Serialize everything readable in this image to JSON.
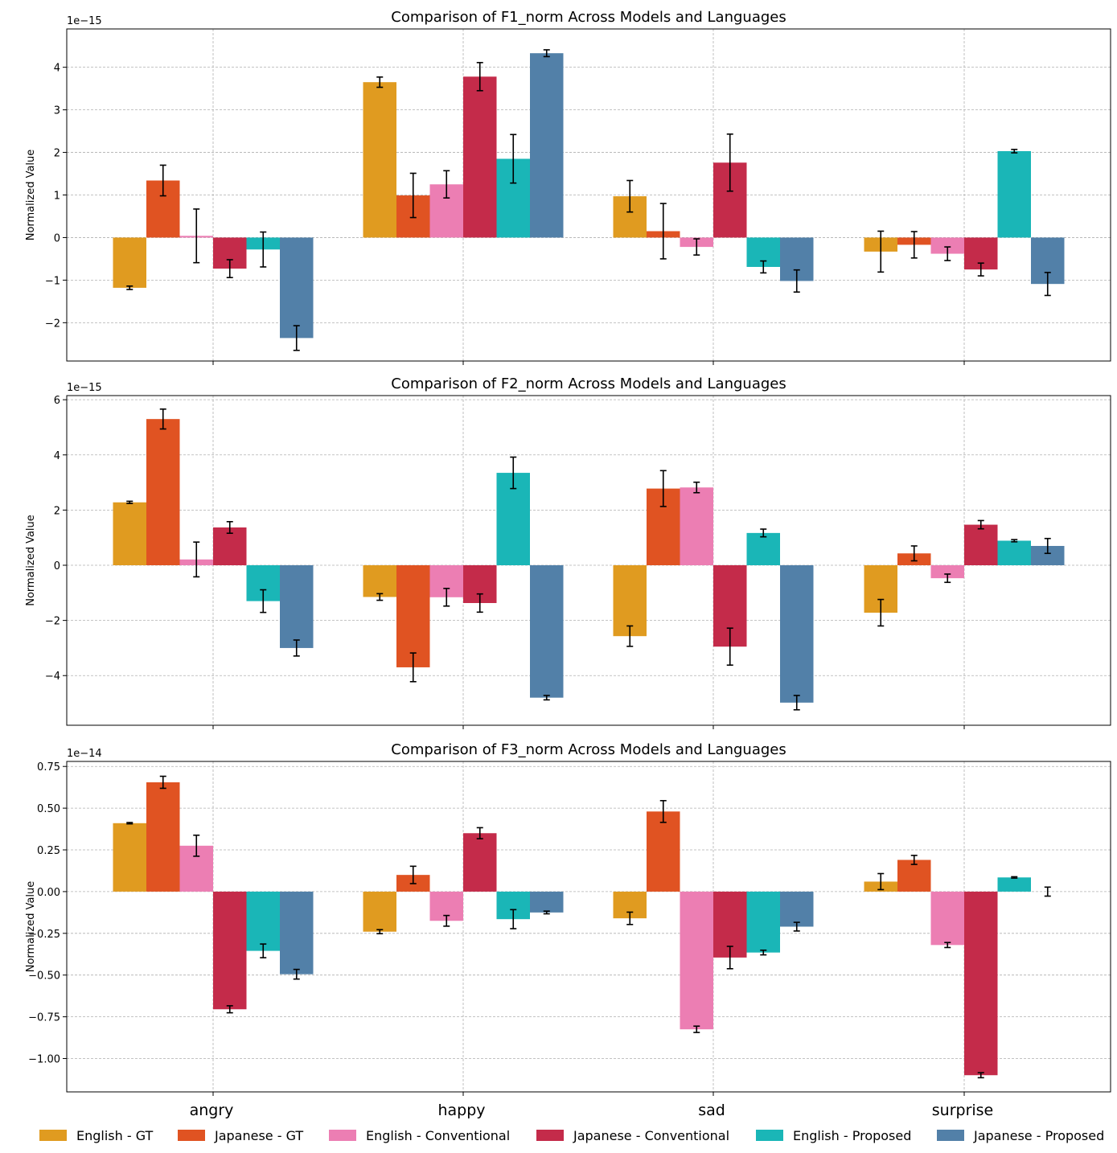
{
  "chart_data": [
    {
      "type": "bar",
      "title": "Comparison of F1_norm Across Models and Languages",
      "ylabel": "Normalized Value",
      "exponent_label": "1e−15",
      "categories": [
        "angry",
        "happy",
        "sad",
        "surprise"
      ],
      "ylim": [
        -2.9,
        4.9
      ],
      "yticks": [
        -2,
        -1,
        0,
        1,
        2,
        3,
        4
      ],
      "ytick_labels": [
        "−2",
        "−1",
        "0",
        "1",
        "2",
        "3",
        "4"
      ],
      "grid": true,
      "series": [
        {
          "name": "English - GT",
          "values": [
            -1.18,
            3.65,
            0.97,
            -0.33
          ],
          "errors": [
            0.04,
            0.12,
            0.37,
            0.48
          ]
        },
        {
          "name": "Japanese - GT",
          "values": [
            1.34,
            0.99,
            0.15,
            -0.17
          ],
          "errors": [
            0.36,
            0.52,
            0.65,
            0.31
          ]
        },
        {
          "name": "English - Conventional",
          "values": [
            0.04,
            1.25,
            -0.22,
            -0.38
          ],
          "errors": [
            0.63,
            0.32,
            0.19,
            0.16
          ]
        },
        {
          "name": "Japanese - Conventional",
          "values": [
            -0.73,
            3.78,
            1.76,
            -0.75
          ],
          "errors": [
            0.21,
            0.33,
            0.67,
            0.15
          ]
        },
        {
          "name": "English - Proposed",
          "values": [
            -0.28,
            1.85,
            -0.69,
            2.03
          ],
          "errors": [
            0.41,
            0.57,
            0.14,
            0.04
          ]
        },
        {
          "name": "Japanese - Proposed",
          "values": [
            -2.36,
            4.33,
            -1.02,
            -1.09
          ],
          "errors": [
            0.29,
            0.08,
            0.26,
            0.27
          ]
        }
      ]
    },
    {
      "type": "bar",
      "title": "Comparison of F2_norm Across Models and Languages",
      "ylabel": "Normalized Value",
      "exponent_label": "1e−15",
      "categories": [
        "angry",
        "happy",
        "sad",
        "surprise"
      ],
      "ylim": [
        -5.8,
        6.15
      ],
      "yticks": [
        -4,
        -2,
        0,
        2,
        4,
        6
      ],
      "ytick_labels": [
        "−4",
        "−2",
        "0",
        "2",
        "4",
        "6"
      ],
      "grid": true,
      "series": [
        {
          "name": "English - GT",
          "values": [
            2.28,
            -1.15,
            -2.57,
            -1.72
          ],
          "errors": [
            0.04,
            0.12,
            0.37,
            0.48
          ]
        },
        {
          "name": "Japanese - GT",
          "values": [
            5.3,
            -3.7,
            2.78,
            0.43
          ],
          "errors": [
            0.36,
            0.52,
            0.65,
            0.27
          ]
        },
        {
          "name": "English - Conventional",
          "values": [
            0.21,
            -1.16,
            2.82,
            -0.47
          ],
          "errors": [
            0.63,
            0.32,
            0.19,
            0.15
          ]
        },
        {
          "name": "Japanese - Conventional",
          "values": [
            1.37,
            -1.37,
            -2.95,
            1.47
          ],
          "errors": [
            0.21,
            0.33,
            0.67,
            0.15
          ]
        },
        {
          "name": "English - Proposed",
          "values": [
            -1.3,
            3.35,
            1.17,
            0.89
          ],
          "errors": [
            0.41,
            0.57,
            0.14,
            0.04
          ]
        },
        {
          "name": "Japanese - Proposed",
          "values": [
            -3.0,
            -4.8,
            -4.98,
            0.7
          ],
          "errors": [
            0.29,
            0.08,
            0.26,
            0.27
          ]
        }
      ]
    },
    {
      "type": "bar",
      "title": "Comparison of F3_norm Across Models and Languages",
      "ylabel": "Normalized Value",
      "exponent_label": "1e−14",
      "categories": [
        "angry",
        "happy",
        "sad",
        "surprise"
      ],
      "ylim": [
        -1.2,
        0.78
      ],
      "yticks": [
        -1.0,
        -0.75,
        -0.5,
        -0.25,
        0.0,
        0.25,
        0.5,
        0.75
      ],
      "ytick_labels": [
        "−1.00",
        "−0.75",
        "−0.50",
        "−0.25",
        "0.00",
        "0.25",
        "0.50",
        "0.75"
      ],
      "grid": true,
      "series": [
        {
          "name": "English - GT",
          "values": [
            0.41,
            -0.24,
            -0.16,
            0.06
          ],
          "errors": [
            0.004,
            0.012,
            0.037,
            0.048
          ]
        },
        {
          "name": "Japanese - GT",
          "values": [
            0.655,
            0.1,
            0.48,
            0.19
          ],
          "errors": [
            0.036,
            0.052,
            0.065,
            0.027
          ]
        },
        {
          "name": "English - Conventional",
          "values": [
            0.275,
            -0.175,
            -0.825,
            -0.32
          ],
          "errors": [
            0.063,
            0.032,
            0.019,
            0.015
          ]
        },
        {
          "name": "Japanese - Conventional",
          "values": [
            -0.705,
            0.35,
            -0.395,
            -1.1
          ],
          "errors": [
            0.021,
            0.033,
            0.067,
            0.015
          ]
        },
        {
          "name": "English - Proposed",
          "values": [
            -0.355,
            -0.165,
            -0.365,
            0.085
          ],
          "errors": [
            0.041,
            0.057,
            0.014,
            0.004
          ]
        },
        {
          "name": "Japanese - Proposed",
          "values": [
            -0.495,
            -0.125,
            -0.21,
            0.0
          ],
          "errors": [
            0.029,
            0.008,
            0.026,
            0.027
          ]
        }
      ]
    }
  ],
  "legend": {
    "position": "bottom",
    "entries": [
      {
        "label": "English - GT",
        "color": "#e09b20"
      },
      {
        "label": "Japanese - GT",
        "color": "#e05322"
      },
      {
        "label": "English - Conventional",
        "color": "#ec7eb3"
      },
      {
        "label": "Japanese - Conventional",
        "color": "#c42b4a"
      },
      {
        "label": "English - Proposed",
        "color": "#1ab6b7"
      },
      {
        "label": "Japanese - Proposed",
        "color": "#5280a8"
      }
    ]
  }
}
